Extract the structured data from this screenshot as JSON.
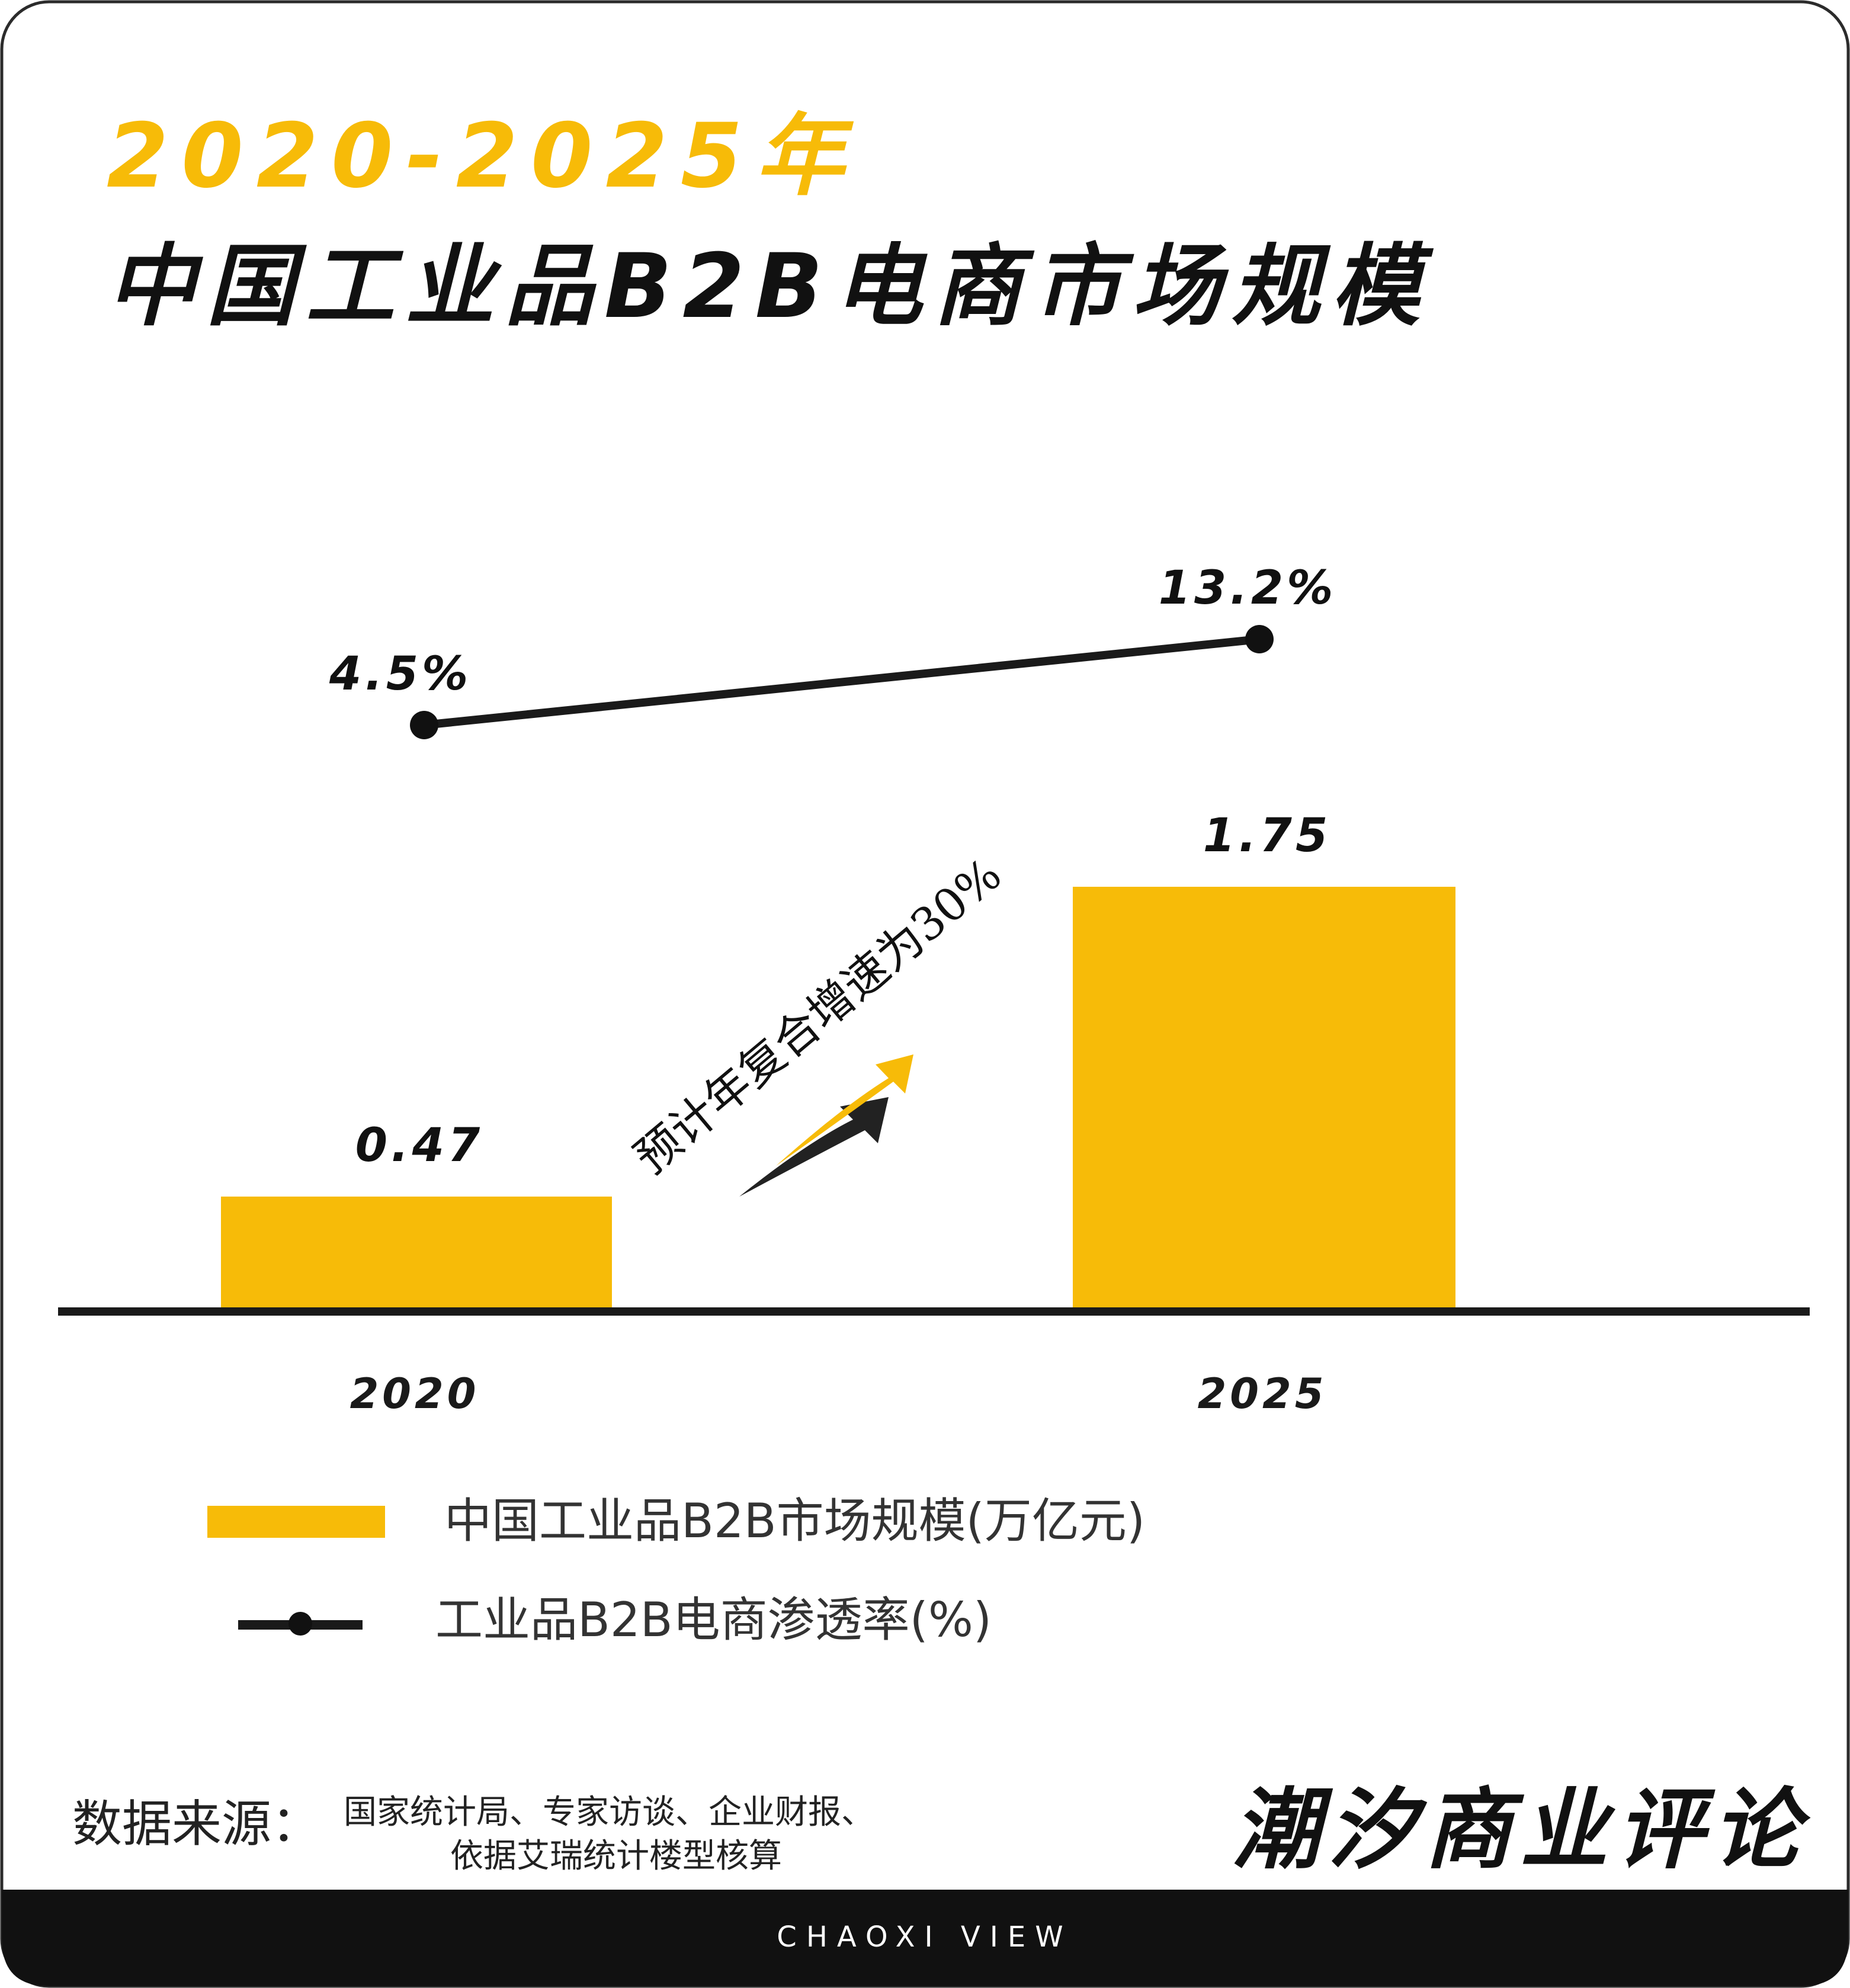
{
  "header": {
    "title_line1": "2020-2025年",
    "title_line2": "中国工业品B2B电商市场规模"
  },
  "chart_data": {
    "type": "bar",
    "categories": [
      "2020",
      "2025"
    ],
    "series": [
      {
        "name": "中国工业品B2B市场规模(万亿元)",
        "type": "bar",
        "values": [
          0.47,
          1.75
        ],
        "labels": [
          "0.47",
          "1.75"
        ],
        "color": "#f7bb08"
      },
      {
        "name": "工业品B2B电商渗透率(%)",
        "type": "line",
        "values": [
          4.5,
          13.2
        ],
        "labels": [
          "4.5%",
          "13.2%"
        ],
        "color": "#1a1a1a"
      }
    ],
    "annotation": "预计年复合增速为30%",
    "legend_position": "bottom-left",
    "grid": false
  },
  "source": {
    "label": "数据来源：",
    "line1": "国家统计局、专家访谈、企业财报、",
    "line2": "依据艾瑞统计楼型核算"
  },
  "brand": {
    "name": "潮汐商业评论",
    "footer": "CHAOXI VIEW"
  },
  "colors": {
    "accent": "#f7bb08",
    "dark": "#111111",
    "footer_bg": "#111111"
  }
}
